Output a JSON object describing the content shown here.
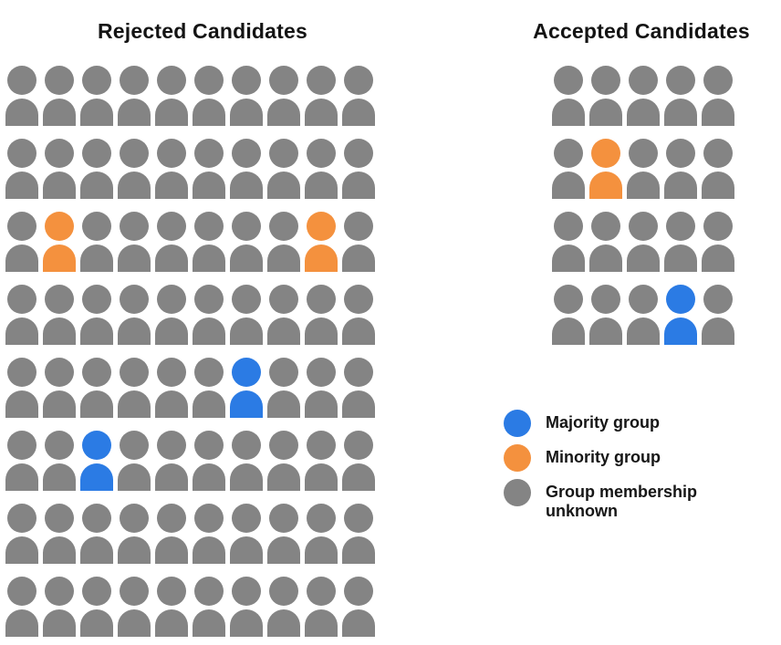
{
  "chart_data": {
    "type": "pictogram",
    "unit_shape": "person-icon",
    "categories": [
      "majority",
      "minority",
      "unknown"
    ],
    "colors": {
      "majority": "#2B7BE4",
      "minority": "#F4913E",
      "unknown": "#848484"
    },
    "groups": [
      {
        "id": "rejected",
        "title": "Rejected Candidates",
        "rows": 8,
        "cols": 10,
        "total": 80,
        "counts": {
          "majority": 2,
          "minority": 2,
          "unknown": 76
        },
        "default_category": "unknown",
        "special_cells": [
          {
            "row": 2,
            "col": 1,
            "category": "minority"
          },
          {
            "row": 2,
            "col": 8,
            "category": "minority"
          },
          {
            "row": 4,
            "col": 6,
            "category": "majority"
          },
          {
            "row": 5,
            "col": 2,
            "category": "majority"
          }
        ]
      },
      {
        "id": "accepted",
        "title": "Accepted Candidates",
        "rows": 4,
        "cols": 5,
        "total": 20,
        "counts": {
          "majority": 1,
          "minority": 1,
          "unknown": 18
        },
        "default_category": "unknown",
        "special_cells": [
          {
            "row": 1,
            "col": 1,
            "category": "minority"
          },
          {
            "row": 3,
            "col": 3,
            "category": "majority"
          }
        ]
      }
    ],
    "legend": [
      {
        "key": "majority",
        "label": "Majority group",
        "color": "#2B7BE4"
      },
      {
        "key": "minority",
        "label": "Minority group",
        "color": "#F4913E"
      },
      {
        "key": "unknown",
        "label": "Group membership unknown",
        "color": "#848484"
      }
    ],
    "legend_position": "right-middle",
    "grid": false
  }
}
